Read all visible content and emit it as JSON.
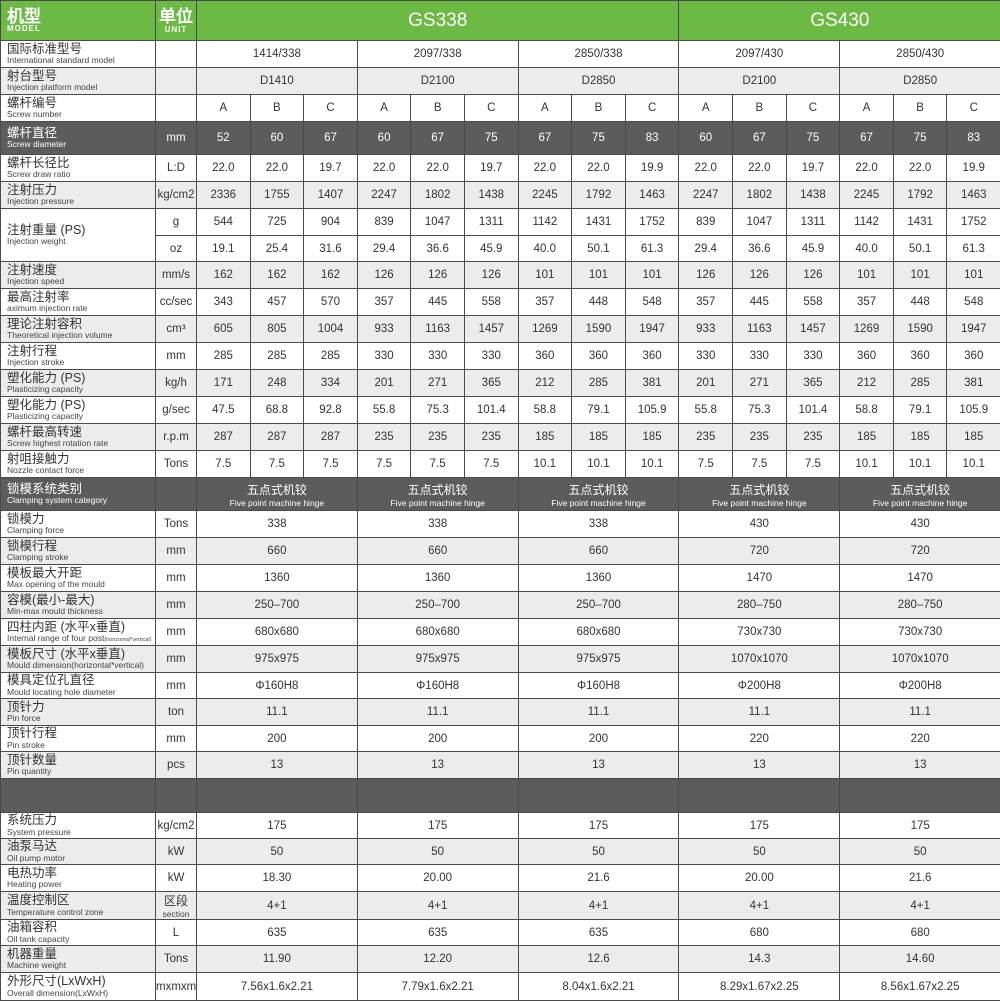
{
  "colors": {
    "header_green": "#6cb944",
    "dark_row": "#5d5c5c",
    "stripe": "#ececec",
    "border": "#4a4a4a"
  },
  "header": {
    "model_cn": "机型",
    "model_en": "MODEL",
    "unit_cn": "单位",
    "unit_en": "UNIT",
    "models": [
      {
        "name": "GS338",
        "columns": 9
      },
      {
        "name": "GS430",
        "columns": 6
      }
    ]
  },
  "rows": [
    {
      "cn": "国际标准型号",
      "en": "International standard model",
      "unit": "",
      "span": [
        "1414/338",
        "2097/338",
        "2850/338",
        "2097/430",
        "2850/430"
      ]
    },
    {
      "cn": "射台型号",
      "en": "Injection platform model",
      "unit": "",
      "span": [
        "D1410",
        "D2100",
        "D2850",
        "D2100",
        "D2850"
      ]
    },
    {
      "cn": "螺杆编号",
      "en": "Screw number",
      "unit": "",
      "values": [
        "A",
        "B",
        "C",
        "A",
        "B",
        "C",
        "A",
        "B",
        "C",
        "A",
        "B",
        "C",
        "A",
        "B",
        "C"
      ]
    },
    {
      "cn": "螺杆直径",
      "en": "Screw diameter",
      "unit": "mm",
      "values": [
        "52",
        "60",
        "67",
        "60",
        "67",
        "75",
        "67",
        "75",
        "83",
        "60",
        "67",
        "75",
        "67",
        "75",
        "83"
      ]
    },
    {
      "cn": "螺杆长径比",
      "en": "Screw draw ratio",
      "unit": "L:D",
      "values": [
        "22.0",
        "22.0",
        "19.7",
        "22.0",
        "22.0",
        "19.7",
        "22.0",
        "22.0",
        "19.9",
        "22.0",
        "22.0",
        "19.7",
        "22.0",
        "22.0",
        "19.9"
      ]
    },
    {
      "cn": "注射压力",
      "en": "Injection pressure",
      "unit": "kg/cm2",
      "values": [
        "2336",
        "1755",
        "1407",
        "2247",
        "1802",
        "1438",
        "2245",
        "1792",
        "1463",
        "2247",
        "1802",
        "1438",
        "2245",
        "1792",
        "1463"
      ]
    },
    {
      "cn": "注射重量 (PS)",
      "en": "Injection weight",
      "sub": [
        {
          "unit": "g",
          "values": [
            "544",
            "725",
            "904",
            "839",
            "1047",
            "1311",
            "1142",
            "1431",
            "1752",
            "839",
            "1047",
            "1311",
            "1142",
            "1431",
            "1752"
          ]
        },
        {
          "unit": "oz",
          "values": [
            "19.1",
            "25.4",
            "31.6",
            "29.4",
            "36.6",
            "45.9",
            "40.0",
            "50.1",
            "61.3",
            "29.4",
            "36.6",
            "45.9",
            "40.0",
            "50.1",
            "61.3"
          ]
        }
      ]
    },
    {
      "cn": "注射速度",
      "en": "Injection speed",
      "unit": "mm/s",
      "values": [
        "162",
        "162",
        "162",
        "126",
        "126",
        "126",
        "101",
        "101",
        "101",
        "126",
        "126",
        "126",
        "101",
        "101",
        "101"
      ]
    },
    {
      "cn": "最高注射率",
      "en": "aximum injection rate",
      "unit": "cc/sec",
      "values": [
        "343",
        "457",
        "570",
        "357",
        "445",
        "558",
        "357",
        "448",
        "548",
        "357",
        "445",
        "558",
        "357",
        "448",
        "548"
      ]
    },
    {
      "cn": "理论注射容积",
      "en": "Theoretical injection volume",
      "unit": "cm³",
      "values": [
        "605",
        "805",
        "1004",
        "933",
        "1163",
        "1457",
        "1269",
        "1590",
        "1947",
        "933",
        "1163",
        "1457",
        "1269",
        "1590",
        "1947"
      ]
    },
    {
      "cn": "注射行程",
      "en": "Injection stroke",
      "unit": "mm",
      "values": [
        "285",
        "285",
        "285",
        "330",
        "330",
        "330",
        "360",
        "360",
        "360",
        "330",
        "330",
        "330",
        "360",
        "360",
        "360"
      ]
    },
    {
      "cn": "塑化能力 (PS)",
      "en": "Plasticizing capacity",
      "unit": "kg/h",
      "values": [
        "171",
        "248",
        "334",
        "201",
        "271",
        "365",
        "212",
        "285",
        "381",
        "201",
        "271",
        "365",
        "212",
        "285",
        "381"
      ]
    },
    {
      "cn": "塑化能力 (PS)",
      "en": "Plasticizing capacity",
      "unit": "g/sec",
      "values": [
        "47.5",
        "68.8",
        "92.8",
        "55.8",
        "75.3",
        "101.4",
        "58.8",
        "79.1",
        "105.9",
        "55.8",
        "75.3",
        "101.4",
        "58.8",
        "79.1",
        "105.9"
      ]
    },
    {
      "cn": "螺杆最高转速",
      "en": "Screw highest rotation rate",
      "unit": "r.p.m",
      "values": [
        "287",
        "287",
        "287",
        "235",
        "235",
        "235",
        "185",
        "185",
        "185",
        "235",
        "235",
        "235",
        "185",
        "185",
        "185"
      ]
    },
    {
      "cn": "射咀接触力",
      "en": "Nozzle contact force",
      "unit": "Tons",
      "values": [
        "7.5",
        "7.5",
        "7.5",
        "7.5",
        "7.5",
        "7.5",
        "10.1",
        "10.1",
        "10.1",
        "7.5",
        "7.5",
        "7.5",
        "10.1",
        "10.1",
        "10.1"
      ]
    },
    {
      "cn": "锁模系统类别",
      "en": "Clamping system category",
      "unit": "",
      "span2": [
        {
          "cn": "五点式机铰",
          "en": "Five point machine hinge"
        },
        {
          "cn": "五点式机铰",
          "en": "Five point machine hinge"
        },
        {
          "cn": "五点式机铰",
          "en": "Five point machine hinge"
        },
        {
          "cn": "五点式机铰",
          "en": "Five point machine hinge"
        },
        {
          "cn": "五点式机铰",
          "en": "Five point machine hinge"
        }
      ]
    },
    {
      "cn": "锁模力",
      "en": "Clamping force",
      "unit": "Tons",
      "span": [
        "338",
        "338",
        "338",
        "430",
        "430"
      ]
    },
    {
      "cn": "锁模行程",
      "en": "Clamping stroke",
      "unit": "mm",
      "span": [
        "660",
        "660",
        "660",
        "720",
        "720"
      ]
    },
    {
      "cn": "模板最大开距",
      "en": "Max opening of the mould",
      "unit": "mm",
      "span": [
        "1360",
        "1360",
        "1360",
        "1470",
        "1470"
      ]
    },
    {
      "cn": "容模(最小-最大)",
      "en": "Min-max mould thickness",
      "unit": "mm",
      "span": [
        "250–700",
        "250–700",
        "250–700",
        "280–750",
        "280–750"
      ]
    },
    {
      "cn": "四柱内距 (水平x垂直)",
      "en": "Internal range of four post",
      "en_small": "(horizontal*vertical)",
      "unit": "mm",
      "span": [
        "680x680",
        "680x680",
        "680x680",
        "730x730",
        "730x730"
      ]
    },
    {
      "cn": "模板尺寸 (水平x垂直)",
      "en": "Mould dimension(horizontal*vertical)",
      "unit": "mm",
      "span": [
        "975x975",
        "975x975",
        "975x975",
        "1070x1070",
        "1070x1070"
      ]
    },
    {
      "cn": "模具定位孔直径",
      "en": "Mould locating hole diameter",
      "unit": "mm",
      "span": [
        "Φ160H8",
        "Φ160H8",
        "Φ160H8",
        "Φ200H8",
        "Φ200H8"
      ]
    },
    {
      "cn": "顶针力",
      "en": "Pin force",
      "unit": "ton",
      "span": [
        "11.1",
        "11.1",
        "11.1",
        "11.1",
        "11.1"
      ]
    },
    {
      "cn": "顶针行程",
      "en": "Pin stroke",
      "unit": "mm",
      "span": [
        "200",
        "200",
        "200",
        "220",
        "220"
      ]
    },
    {
      "cn": "顶针数量",
      "en": "Pin quantity",
      "unit": "pcs",
      "span": [
        "13",
        "13",
        "13",
        "13",
        "13"
      ]
    },
    {
      "cn": "",
      "en": "",
      "unit": "",
      "span": [
        "",
        "",
        "",
        "",
        ""
      ]
    },
    {
      "cn": "系统压力",
      "en": "System pressure",
      "unit": "kg/cm2",
      "span": [
        "175",
        "175",
        "175",
        "175",
        "175"
      ]
    },
    {
      "cn": "油泵马达",
      "en": "Oil pump motor",
      "unit": "kW",
      "span": [
        "50",
        "50",
        "50",
        "50",
        "50"
      ]
    },
    {
      "cn": "电热功率",
      "en": "Heating power",
      "unit": "kW",
      "span": [
        "18.30",
        "20.00",
        "21.6",
        "20.00",
        "21.6"
      ]
    },
    {
      "cn": "温度控制区",
      "en": "Temperature control zone",
      "unit_cn": "区段",
      "unit_en": "section",
      "span": [
        "4+1",
        "4+1",
        "4+1",
        "4+1",
        "4+1"
      ]
    },
    {
      "cn": "油箱容积",
      "en": "Oil tank capacity",
      "unit": "L",
      "span": [
        "635",
        "635",
        "635",
        "680",
        "680"
      ]
    },
    {
      "cn": "机器重量",
      "en": "Machine weight",
      "unit": "Tons",
      "span": [
        "11.90",
        "12.20",
        "12.6",
        "14.3",
        "14.60"
      ]
    },
    {
      "cn": "外形尺寸(LxWxH)",
      "en": "Overall dimension(LxWxH)",
      "unit": "mxmxm",
      "span": [
        "7.56x1.6x2.21",
        "7.79x1.6x2.21",
        "8.04x1.6x2.21",
        "8.29x1.67x2.25",
        "8.56x1.67x2.25"
      ]
    }
  ]
}
